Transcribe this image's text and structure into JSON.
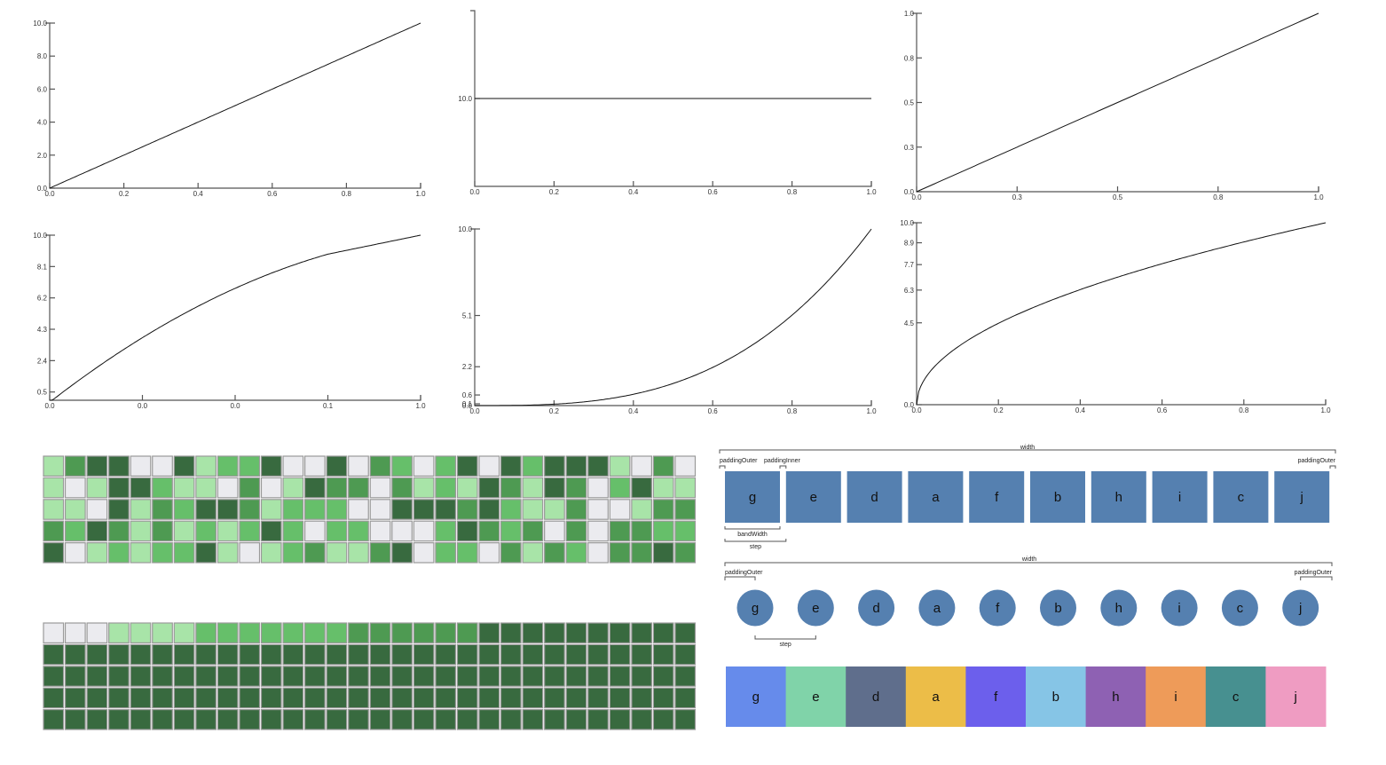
{
  "chart_data": [
    {
      "id": "linear",
      "type": "line",
      "title": "",
      "xlim": [
        0,
        1
      ],
      "ylim": [
        0,
        10
      ],
      "x_ticks": [
        0.0,
        0.2,
        0.4,
        0.6,
        0.8,
        1.0
      ],
      "x_tick_labels": [
        "0.0",
        "0.2",
        "0.4",
        "0.6",
        "0.8",
        "1.0"
      ],
      "y_ticks": [
        0,
        2,
        4,
        6,
        8,
        10
      ],
      "y_tick_labels": [
        "0.0",
        "2.0",
        "4.0",
        "6.0",
        "8.0",
        "10.0"
      ],
      "function": "y = 10x",
      "x": [
        0,
        1
      ],
      "y": [
        0,
        10
      ]
    },
    {
      "id": "constant",
      "type": "line",
      "title": "",
      "xlim": [
        0,
        1
      ],
      "ylim": [
        9,
        11
      ],
      "x_ticks": [
        0.0,
        0.2,
        0.4,
        0.6,
        0.8,
        1.0
      ],
      "x_tick_labels": [
        "0.0",
        "0.2",
        "0.4",
        "0.6",
        "0.8",
        "1.0"
      ],
      "y_ticks": [
        10
      ],
      "y_tick_labels": [
        "10.0"
      ],
      "function": "y = 10",
      "x": [
        0,
        1
      ],
      "y": [
        10,
        10
      ]
    },
    {
      "id": "identity",
      "type": "line",
      "title": "",
      "xlim": [
        0,
        1
      ],
      "ylim": [
        0,
        1
      ],
      "x_ticks": [
        0.0,
        0.25,
        0.5,
        0.75,
        1.0
      ],
      "x_tick_labels": [
        "0.0",
        "0.3",
        "0.5",
        "0.8",
        "1.0"
      ],
      "y_ticks": [
        0.0,
        0.25,
        0.5,
        0.75,
        1.0
      ],
      "y_tick_labels": [
        "0.0",
        "0.3",
        "0.5",
        "0.8",
        "1.0"
      ],
      "function": "y = x",
      "x": [
        0,
        1
      ],
      "y": [
        0,
        1
      ]
    },
    {
      "id": "log",
      "type": "line",
      "title": "",
      "xscale": "log",
      "xlim": [
        0.0001,
        1
      ],
      "ylim": [
        0,
        10
      ],
      "x_ticks": [
        0.0001,
        0.001,
        0.01,
        0.1,
        1.0
      ],
      "x_tick_labels": [
        "0.0",
        "0.0",
        "0.0",
        "0.1",
        "1.0"
      ],
      "y_ticks": [
        0.5,
        2.4,
        4.3,
        6.2,
        8.1,
        10.0
      ],
      "y_tick_labels": [
        "0.5",
        "2.4",
        "4.3",
        "6.2",
        "8.1",
        "10.0"
      ],
      "function": "y = log-shaped rise, 10 at x=1",
      "x": [
        0.0001,
        0.001,
        0.01,
        0.05,
        0.1,
        0.3,
        0.5,
        1.0
      ],
      "y": [
        0.0,
        4.5,
        6.6,
        7.8,
        8.2,
        9.1,
        9.5,
        10.0
      ]
    },
    {
      "id": "pow3",
      "type": "line",
      "title": "",
      "xlim": [
        0,
        1
      ],
      "ylim": [
        0,
        10
      ],
      "x_ticks": [
        0.0,
        0.2,
        0.4,
        0.6,
        0.8,
        1.0
      ],
      "x_tick_labels": [
        "0.0",
        "0.2",
        "0.4",
        "0.6",
        "0.8",
        "1.0"
      ],
      "y_ticks": [
        0.0,
        0.1,
        0.6,
        2.2,
        5.1,
        10.0
      ],
      "y_tick_labels": [
        "0.0",
        "0.1",
        "0.6",
        "2.2",
        "5.1",
        "10.0"
      ],
      "function": "y = 10x^3",
      "x": [
        0,
        0.2,
        0.4,
        0.6,
        0.8,
        1.0
      ],
      "y": [
        0,
        0.08,
        0.64,
        2.16,
        5.12,
        10.0
      ]
    },
    {
      "id": "sqrt",
      "type": "line",
      "title": "",
      "xlim": [
        0,
        1
      ],
      "ylim": [
        0,
        10
      ],
      "x_ticks": [
        0.0,
        0.2,
        0.4,
        0.6,
        0.8,
        1.0
      ],
      "x_tick_labels": [
        "0.0",
        "0.2",
        "0.4",
        "0.6",
        "0.8",
        "1.0"
      ],
      "y_ticks": [
        0.0,
        4.5,
        6.3,
        7.7,
        8.9,
        10.0
      ],
      "y_tick_labels": [
        "0.0",
        "4.5",
        "6.3",
        "7.7",
        "8.9",
        "10.0"
      ],
      "function": "y = 10*sqrt(x)",
      "x": [
        0,
        0.2,
        0.4,
        0.6,
        0.8,
        1.0
      ],
      "y": [
        0,
        4.47,
        6.32,
        7.75,
        8.94,
        10.0
      ]
    },
    {
      "id": "heatmap-quantize",
      "type": "heatmap",
      "title": "",
      "rows": 5,
      "cols": 30,
      "palette": [
        "#ebebef",
        "#a8e4a8",
        "#66bf6a",
        "#4e9a52",
        "#386a3f"
      ],
      "values": [
        [
          1,
          3,
          4,
          4,
          0,
          0,
          4,
          1,
          2,
          2,
          4,
          0,
          0,
          4,
          0,
          3,
          2,
          0,
          2,
          4,
          0,
          4,
          2,
          4,
          4,
          4,
          1,
          0,
          3,
          0
        ],
        [
          1,
          0,
          1,
          4,
          4,
          2,
          1,
          1,
          0,
          3,
          0,
          1,
          4,
          3,
          3,
          0,
          3,
          1,
          2,
          1,
          4,
          3,
          1,
          4,
          3,
          0,
          2,
          4,
          1,
          1
        ],
        [
          1,
          1,
          0,
          4,
          1,
          3,
          2,
          4,
          4,
          3,
          1,
          2,
          2,
          2,
          0,
          0,
          4,
          4,
          4,
          3,
          4,
          2,
          1,
          1,
          3,
          0,
          0,
          1,
          3,
          3
        ],
        [
          3,
          2,
          4,
          3,
          1,
          3,
          1,
          2,
          1,
          2,
          4,
          2,
          0,
          2,
          2,
          0,
          0,
          0,
          2,
          4,
          3,
          2,
          3,
          0,
          3,
          0,
          3,
          3,
          2,
          2
        ],
        [
          4,
          0,
          1,
          2,
          1,
          2,
          2,
          4,
          1,
          0,
          1,
          2,
          3,
          1,
          1,
          3,
          4,
          0,
          2,
          2,
          0,
          3,
          1,
          3,
          2,
          0,
          3,
          3,
          4,
          3
        ]
      ]
    },
    {
      "id": "heatmap-sequential",
      "type": "heatmap",
      "title": "",
      "rows": 5,
      "cols": 30,
      "palette": [
        "#ebebef",
        "#a8e4a8",
        "#66bf6a",
        "#4e9a52",
        "#386a3f"
      ],
      "values": [
        [
          0,
          0,
          0,
          1,
          1,
          1,
          1,
          2,
          2,
          2,
          2,
          2,
          2,
          2,
          3,
          3,
          3,
          3,
          3,
          3,
          4,
          4,
          4,
          4,
          4,
          4,
          4,
          4,
          4,
          4
        ],
        [
          4,
          4,
          4,
          4,
          4,
          4,
          4,
          4,
          4,
          4,
          4,
          4,
          4,
          4,
          4,
          4,
          4,
          4,
          4,
          4,
          4,
          4,
          4,
          4,
          4,
          4,
          4,
          4,
          4,
          4
        ],
        [
          4,
          4,
          4,
          4,
          4,
          4,
          4,
          4,
          4,
          4,
          4,
          4,
          4,
          4,
          4,
          4,
          4,
          4,
          4,
          4,
          4,
          4,
          4,
          4,
          4,
          4,
          4,
          4,
          4,
          4
        ],
        [
          4,
          4,
          4,
          4,
          4,
          4,
          4,
          4,
          4,
          4,
          4,
          4,
          4,
          4,
          4,
          4,
          4,
          4,
          4,
          4,
          4,
          4,
          4,
          4,
          4,
          4,
          4,
          4,
          4,
          4
        ],
        [
          4,
          4,
          4,
          4,
          4,
          4,
          4,
          4,
          4,
          4,
          4,
          4,
          4,
          4,
          4,
          4,
          4,
          4,
          4,
          4,
          4,
          4,
          4,
          4,
          4,
          4,
          4,
          4,
          4,
          4
        ]
      ]
    },
    {
      "id": "band-scale",
      "type": "diagram",
      "title": "",
      "domain": [
        "g",
        "e",
        "d",
        "a",
        "f",
        "b",
        "h",
        "i",
        "c",
        "j"
      ],
      "fill": "#5580b0",
      "annotations": {
        "width": "width",
        "padding_outer_left": "paddingOuter",
        "padding_inner": "paddingInner",
        "padding_outer_right": "paddingOuter",
        "bandwidth": "bandWidth",
        "step": "step"
      }
    },
    {
      "id": "point-scale",
      "type": "diagram",
      "title": "",
      "domain": [
        "g",
        "e",
        "d",
        "a",
        "f",
        "b",
        "h",
        "i",
        "c",
        "j"
      ],
      "fill": "#5580b0",
      "annotations": {
        "width": "width",
        "padding_outer_left": "paddingOuter",
        "padding_outer_right": "paddingOuter",
        "step": "step"
      }
    },
    {
      "id": "ordinal-scale",
      "type": "diagram",
      "title": "",
      "domain": [
        "g",
        "e",
        "d",
        "a",
        "f",
        "b",
        "h",
        "i",
        "c",
        "j"
      ],
      "colors": [
        "#668beb",
        "#80d3a9",
        "#5f6e8c",
        "#ecbd48",
        "#6c5fec",
        "#86c5e6",
        "#8e61b3",
        "#ee9b59",
        "#479090",
        "#ef9cc2"
      ]
    }
  ]
}
